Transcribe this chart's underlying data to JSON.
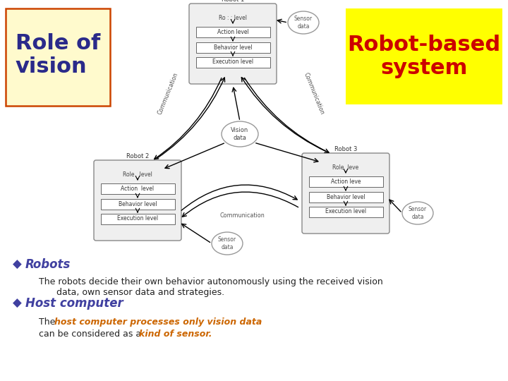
{
  "bg_color": "#ffffff",
  "title_left_text": "Role of\nvision",
  "title_left_bg": "#fffacd",
  "title_left_border": "#cc4400",
  "title_right_text": "Robot-based\nsystem",
  "title_right_bg": "#ffff00",
  "title_right_color": "#cc0000",
  "bullet_color": "#4040a0",
  "robots_header": "Robots",
  "robots_text1": "The robots decide their own behavior autonomously using the received vision",
  "robots_text2": "data, own sensor data and strategies.",
  "host_header": "Host computer",
  "host_line1_plain": "The ",
  "host_line1_colored": "host computer processes only vision data",
  "host_line1_color": "#cc6600",
  "host_line2_plain": "can be considered as a ",
  "host_line2_colored": "kind of sensor.",
  "host_line2_color": "#cc6600"
}
